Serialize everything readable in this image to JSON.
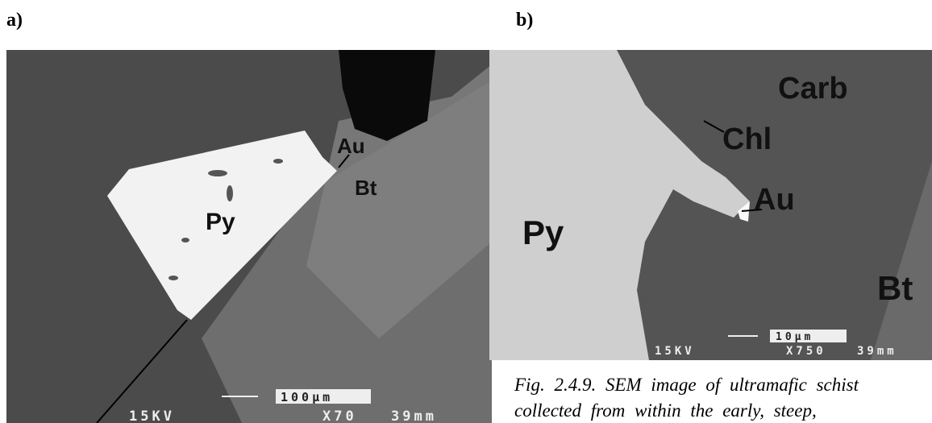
{
  "panels": [
    {
      "label": "a)",
      "annotations": [
        "Au",
        "Bt",
        "Py"
      ],
      "scale": {
        "voltage": "15KV",
        "bar": "100µm",
        "magnification": "X70",
        "distance": "39mm"
      }
    },
    {
      "label": "b)",
      "annotations": [
        "Carb",
        "Chl",
        "Au",
        "Py",
        "Bt"
      ],
      "scale": {
        "voltage": "15KV",
        "bar": "10µm",
        "magnification": "X750",
        "distance": "39mm"
      }
    }
  ],
  "caption": {
    "lines": [
      "Fig. 2.4.9. SEM image of ultramafic schist",
      "collected from within the early, steep,"
    ]
  }
}
